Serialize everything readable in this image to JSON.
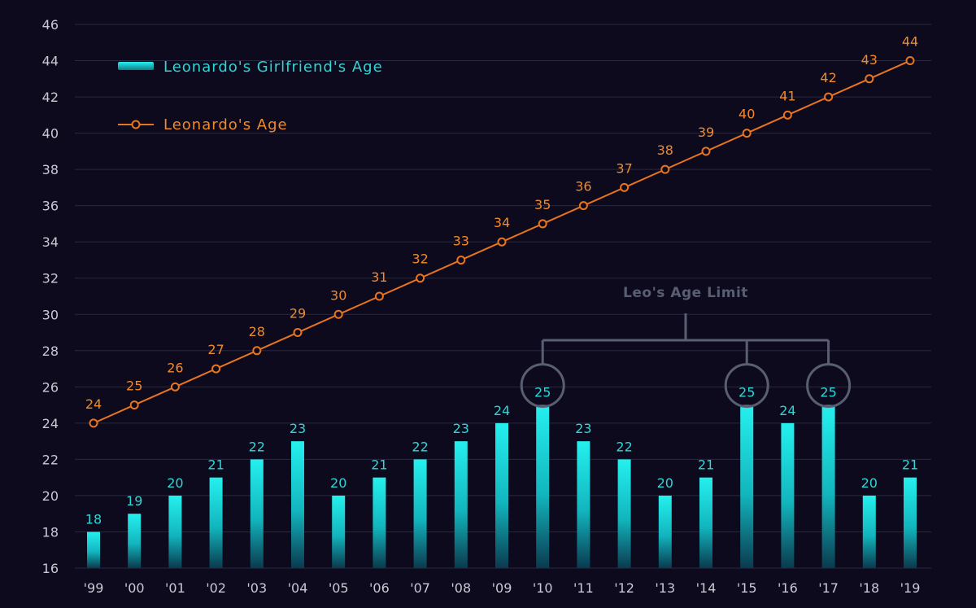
{
  "chart_data": {
    "type": "bar",
    "categories": [
      "'99",
      "'00",
      "'01",
      "'02",
      "'03",
      "'04",
      "'05",
      "'06",
      "'07",
      "'08",
      "'09",
      "'10",
      "'11",
      "'12",
      "'13",
      "'14",
      "'15",
      "'16",
      "'17",
      "'18",
      "'19"
    ],
    "series": [
      {
        "name": "Leonardo's Girlfriend's Age",
        "type": "bar",
        "values": [
          18,
          19,
          20,
          21,
          22,
          23,
          20,
          21,
          22,
          23,
          24,
          25,
          23,
          22,
          20,
          21,
          25,
          24,
          25,
          20,
          21
        ]
      },
      {
        "name": "Leonardo's Age",
        "type": "line",
        "values": [
          24,
          25,
          26,
          27,
          28,
          29,
          30,
          31,
          32,
          33,
          34,
          35,
          36,
          37,
          38,
          39,
          40,
          41,
          42,
          43,
          44
        ]
      }
    ],
    "ylim": [
      16,
      46
    ],
    "yticks": [
      16,
      18,
      20,
      22,
      24,
      26,
      28,
      30,
      32,
      34,
      36,
      38,
      40,
      42,
      44,
      46
    ],
    "grid": true,
    "legend": {
      "placement": "top-left"
    },
    "annotation": {
      "text": "Leo's Age Limit",
      "highlighted_categories": [
        "'10",
        "'15",
        "'17"
      ],
      "value": 25
    },
    "colors": {
      "background": "#0c0a1c",
      "bar": "#18d6d8",
      "line": "#e8741f",
      "line_label": "#f08a2c",
      "bar_label": "#2fd6d6",
      "axis_text": "#c9c9d4",
      "grid": "#2a2840",
      "annotation": "#5a5e72"
    }
  }
}
